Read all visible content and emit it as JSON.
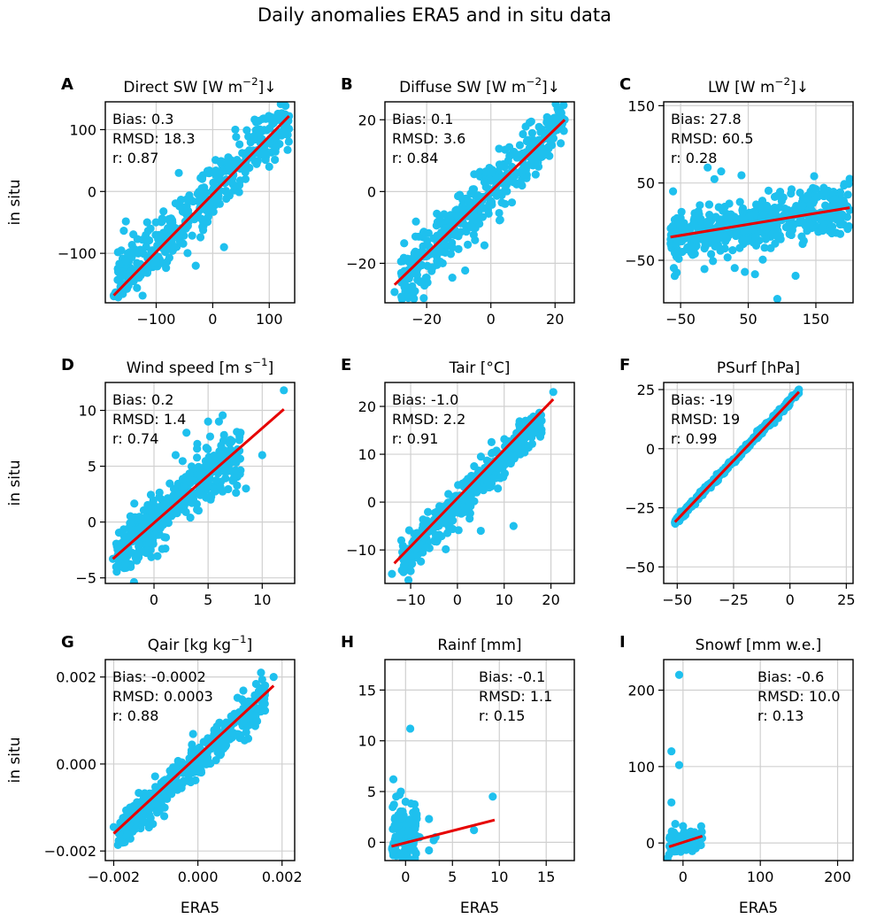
{
  "figure": {
    "title": "Daily anomalies ERA5 and in situ data",
    "xlabel": "ERA5",
    "ylabel": "in situ",
    "colors": {
      "points": "#1ec0ee",
      "fit": "#e60000",
      "grid": "#d0d0d0",
      "axis": "#000000"
    }
  },
  "chart_data": [
    {
      "type": "scatter",
      "letter": "A",
      "title": "Direct SW [W m⁻²]↓",
      "xlim": [
        -190,
        145
      ],
      "ylim": [
        -180,
        145
      ],
      "xticks": [
        -100,
        0,
        100
      ],
      "xtick_labels": [
        "−100",
        "0",
        "100"
      ],
      "yticks": [
        -100,
        0,
        100
      ],
      "ytick_labels": [
        "−100",
        "0",
        "100"
      ],
      "stats": {
        "bias": "Bias: 0.3",
        "rmsd": "RMSD: 18.3",
        "r": "r: 0.87"
      },
      "stats_pos": "top-left",
      "fit": {
        "x": [
          -175,
          135
        ],
        "y": [
          -168,
          122
        ]
      },
      "cloud": {
        "xmin": -175,
        "xmax": 135,
        "slope": 0.87,
        "intercept": 0,
        "spread": 24,
        "n": 420,
        "seed": 11
      },
      "outliers": [
        [
          -175,
          -168
        ],
        [
          135,
          122
        ],
        [
          -140,
          -145
        ],
        [
          -120,
          -130
        ],
        [
          -110,
          -60
        ],
        [
          -150,
          -100
        ],
        [
          -60,
          30
        ],
        [
          40,
          100
        ],
        [
          100,
          40
        ],
        [
          90,
          118
        ],
        [
          20,
          -90
        ],
        [
          -30,
          -120
        ]
      ]
    },
    {
      "type": "scatter",
      "letter": "B",
      "title": "Diffuse SW [W m⁻²]↓",
      "xlim": [
        -33,
        26
      ],
      "ylim": [
        -31,
        25
      ],
      "xticks": [
        -20,
        0,
        20
      ],
      "xtick_labels": [
        "−20",
        "0",
        "20"
      ],
      "yticks": [
        -20,
        0,
        20
      ],
      "ytick_labels": [
        "−20",
        "0",
        "20"
      ],
      "stats": {
        "bias": "Bias: 0.1",
        "rmsd": "RMSD: 3.6",
        "r": "r: 0.84"
      },
      "stats_pos": "top-left",
      "fit": {
        "x": [
          -30,
          23
        ],
        "y": [
          -26,
          20
        ]
      },
      "cloud": {
        "xmin": -28,
        "xmax": 23,
        "slope": 0.88,
        "intercept": 0,
        "spread": 3.8,
        "n": 400,
        "seed": 22
      },
      "outliers": [
        [
          -30,
          -28
        ],
        [
          23,
          20
        ],
        [
          -22,
          -25
        ],
        [
          -20,
          -24
        ],
        [
          -15,
          -20
        ],
        [
          -8,
          -22
        ],
        [
          -12,
          -24
        ],
        [
          -25,
          -20
        ],
        [
          10,
          16
        ],
        [
          15,
          18
        ],
        [
          -2,
          -15
        ]
      ]
    },
    {
      "type": "scatter",
      "letter": "C",
      "title": "LW [W m⁻²]↓",
      "xlim": [
        -75,
        205
      ],
      "ylim": [
        -105,
        155
      ],
      "xticks": [
        -50,
        50,
        150
      ],
      "xtick_labels": [
        "−50",
        "50",
        "150"
      ],
      "yticks": [
        -50,
        50,
        150
      ],
      "ytick_labels": [
        "−50",
        "50",
        "150"
      ],
      "stats": {
        "bias": "Bias: 27.8",
        "rmsd": "RMSD: 60.5",
        "r": "r: 0.28"
      },
      "stats_pos": "top-left",
      "fit": {
        "x": [
          -65,
          200
        ],
        "y": [
          -20,
          18
        ]
      },
      "cloud": {
        "xmin": -65,
        "xmax": 200,
        "slope": 0.14,
        "intercept": -10,
        "spread": 16,
        "n": 480,
        "seed": 33
      },
      "outliers": [
        [
          93,
          -100
        ],
        [
          120,
          -70
        ],
        [
          60,
          -68
        ],
        [
          45,
          -65
        ],
        [
          30,
          -60
        ],
        [
          -10,
          70
        ],
        [
          10,
          65
        ],
        [
          40,
          60
        ],
        [
          0,
          55
        ],
        [
          150,
          42
        ],
        [
          200,
          15
        ],
        [
          -60,
          -60
        ],
        [
          80,
          40
        ]
      ]
    },
    {
      "type": "scatter",
      "letter": "D",
      "title": "Wind speed [m s⁻¹]",
      "xlim": [
        -4.5,
        13
      ],
      "ylim": [
        -5.5,
        12.5
      ],
      "xticks": [
        0,
        5,
        10
      ],
      "xtick_labels": [
        "0",
        "5",
        "10"
      ],
      "yticks": [
        -5,
        0,
        5,
        10
      ],
      "ytick_labels": [
        "−5",
        "0",
        "5",
        "10"
      ],
      "stats": {
        "bias": "Bias: 0.2",
        "rmsd": "RMSD: 1.4",
        "r": "r: 0.74"
      },
      "stats_pos": "top-left",
      "fit": {
        "x": [
          -3.8,
          12
        ],
        "y": [
          -3.3,
          10.1
        ]
      },
      "cloud": {
        "xmin": -3.5,
        "xmax": 8,
        "slope": 0.8,
        "intercept": 0,
        "spread": 1.3,
        "n": 420,
        "seed": 44
      },
      "outliers": [
        [
          12,
          11.8
        ],
        [
          8,
          8
        ],
        [
          6,
          9
        ],
        [
          5,
          9
        ],
        [
          3,
          8
        ],
        [
          10,
          6
        ],
        [
          8.5,
          3
        ],
        [
          7,
          6
        ],
        [
          -3.8,
          -3.3
        ],
        [
          2,
          6
        ],
        [
          4,
          7
        ]
      ]
    },
    {
      "type": "scatter",
      "letter": "E",
      "title": "Tair [°C]",
      "xlim": [
        -15.5,
        25
      ],
      "ylim": [
        -17,
        25
      ],
      "xticks": [
        -10,
        0,
        10,
        20
      ],
      "xtick_labels": [
        "−10",
        "0",
        "10",
        "20"
      ],
      "yticks": [
        -10,
        0,
        10,
        20
      ],
      "ytick_labels": [
        "−10",
        "0",
        "10",
        "20"
      ],
      "stats": {
        "bias": "Bias: -1.0",
        "rmsd": "RMSD: 2.2",
        "r": "r: 0.91"
      },
      "stats_pos": "top-left",
      "fit": {
        "x": [
          -13.5,
          20.5
        ],
        "y": [
          -12.8,
          21.5
        ]
      },
      "cloud": {
        "xmin": -12,
        "xmax": 18,
        "slope": 1.0,
        "intercept": -0.5,
        "spread": 2.0,
        "n": 440,
        "seed": 55
      },
      "outliers": [
        [
          -14,
          -15
        ],
        [
          20.5,
          23
        ],
        [
          12,
          -5
        ],
        [
          5,
          -6
        ],
        [
          18,
          17
        ],
        [
          -12,
          -8
        ]
      ]
    },
    {
      "type": "scatter",
      "letter": "F",
      "title": "PSurf [hPa]",
      "xlim": [
        -56,
        28
      ],
      "ylim": [
        -57,
        28
      ],
      "xticks": [
        -50,
        -25,
        0,
        25
      ],
      "xtick_labels": [
        "−50",
        "−25",
        "0",
        "25"
      ],
      "yticks": [
        -50,
        -25,
        0,
        25
      ],
      "ytick_labels": [
        "−50",
        "−25",
        "0",
        "25"
      ],
      "stats": {
        "bias": "Bias: -19",
        "rmsd": "RMSD: 19",
        "r": "r: 0.99"
      },
      "stats_pos": "top-left",
      "fit": {
        "x": [
          -51,
          4
        ],
        "y": [
          -31,
          24
        ]
      },
      "cloud": {
        "xmin": -51,
        "xmax": 4,
        "slope": 1.0,
        "intercept": 20,
        "spread": 0.7,
        "n": 380,
        "seed": 66
      },
      "outliers": [
        [
          -51,
          -31
        ],
        [
          4,
          25
        ]
      ]
    },
    {
      "type": "scatter",
      "letter": "G",
      "title": "Qair [kg kg⁻¹]",
      "xlim": [
        -0.0022,
        0.0023
      ],
      "ylim": [
        -0.00222,
        0.0024
      ],
      "xticks": [
        -0.002,
        0.0,
        0.002
      ],
      "xtick_labels": [
        "−0.002",
        "0.000",
        "0.002"
      ],
      "yticks": [
        -0.002,
        0.0,
        0.002
      ],
      "ytick_labels": [
        "−0.002",
        "0.000",
        "0.002"
      ],
      "stats": {
        "bias": "Bias: -0.0002",
        "rmsd": "RMSD: 0.0003",
        "r": "r: 0.88"
      },
      "stats_pos": "top-left",
      "fit": {
        "x": [
          -0.002,
          0.0018
        ],
        "y": [
          -0.0016,
          0.0018
        ]
      },
      "cloud": {
        "xmin": -0.0019,
        "xmax": 0.0016,
        "slope": 0.9,
        "intercept": 0.0001,
        "spread": 0.00022,
        "n": 420,
        "seed": 77
      },
      "outliers": [
        [
          -0.002,
          -0.00145
        ],
        [
          0.0018,
          0.002
        ],
        [
          0.0015,
          0.0021
        ],
        [
          -0.0013,
          -0.0013
        ],
        [
          -0.0008,
          -0.0012
        ]
      ]
    },
    {
      "type": "scatter",
      "letter": "H",
      "title": "Rainf [mm]",
      "xlim": [
        -2.2,
        18
      ],
      "ylim": [
        -1.8,
        18
      ],
      "xticks": [
        0,
        5,
        10,
        15
      ],
      "xtick_labels": [
        "0",
        "5",
        "10",
        "15"
      ],
      "yticks": [
        0,
        5,
        10,
        15
      ],
      "ytick_labels": [
        "0",
        "5",
        "10",
        "15"
      ],
      "stats": {
        "bias": "Bias: -0.1",
        "rmsd": "RMSD: 1.1",
        "r": "r: 0.15"
      },
      "stats_pos": "top-right",
      "fit": {
        "x": [
          -1.5,
          9.5
        ],
        "y": [
          -0.4,
          2.2
        ]
      },
      "cloud": {
        "xmin": -1.5,
        "xmax": 1.2,
        "slope": 0.2,
        "intercept": 0.8,
        "spread": 1.4,
        "n": 140,
        "seed": 88
      },
      "outliers": [
        [
          0.5,
          11.2
        ],
        [
          -1.3,
          6.2
        ],
        [
          9.3,
          4.5
        ],
        [
          7.3,
          1.2
        ],
        [
          3.2,
          0.5
        ],
        [
          2.5,
          2.3
        ],
        [
          2.5,
          -0.8
        ],
        [
          3,
          0.2
        ],
        [
          1.5,
          0.5
        ],
        [
          -1,
          4.5
        ],
        [
          0,
          4
        ],
        [
          -0.5,
          5
        ]
      ]
    },
    {
      "type": "scatter",
      "letter": "I",
      "title": "Snowf [mm w.e.]",
      "xlim": [
        -25,
        220
      ],
      "ylim": [
        -23,
        240
      ],
      "xticks": [
        0,
        100,
        200
      ],
      "xtick_labels": [
        "0",
        "100",
        "200"
      ],
      "yticks": [
        0,
        100,
        200
      ],
      "ytick_labels": [
        "0",
        "100",
        "200"
      ],
      "stats": {
        "bias": "Bias: -0.6",
        "rmsd": "RMSD: 10.0",
        "r": "r: 0.13"
      },
      "stats_pos": "top-right",
      "fit": {
        "x": [
          -18,
          25
        ],
        "y": [
          -5,
          9
        ]
      },
      "cloud": {
        "xmin": -18,
        "xmax": 25,
        "slope": 0.1,
        "intercept": 2,
        "spread": 6,
        "n": 110,
        "seed": 99
      },
      "outliers": [
        [
          -5,
          220
        ],
        [
          -15,
          120
        ],
        [
          -5,
          102
        ],
        [
          -15,
          53
        ],
        [
          -20,
          -20
        ],
        [
          -18,
          -15
        ],
        [
          0,
          22
        ],
        [
          10,
          15
        ],
        [
          20,
          10
        ],
        [
          -10,
          25
        ]
      ]
    }
  ]
}
